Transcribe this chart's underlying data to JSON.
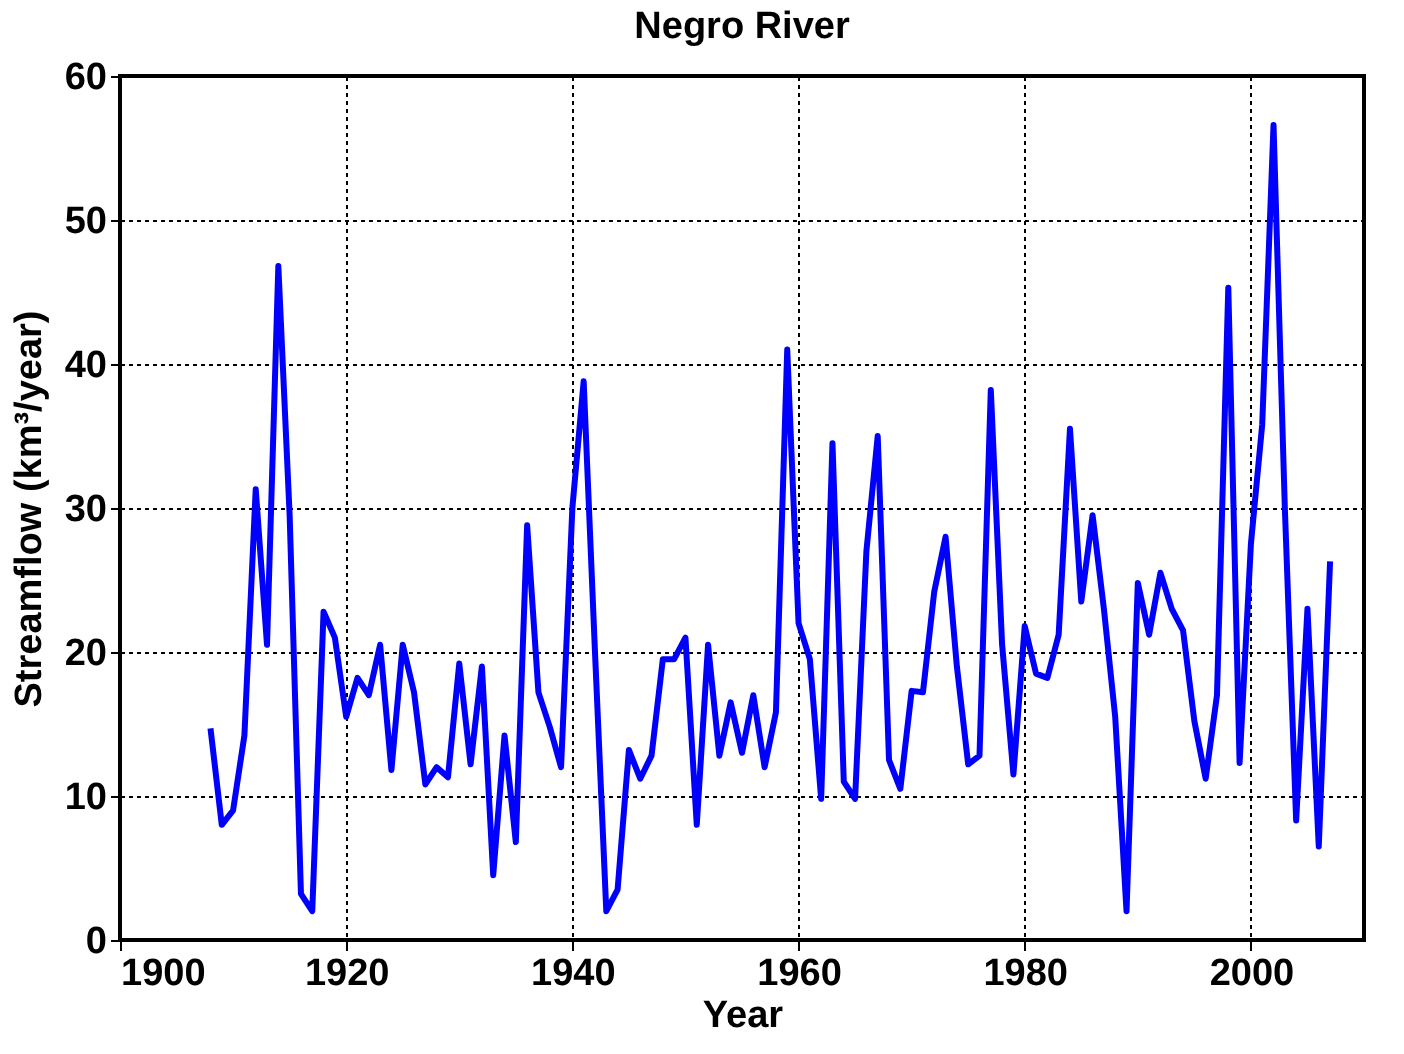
{
  "chart_data": {
    "type": "line",
    "title": "Negro River",
    "xlabel": "Year",
    "ylabel": "Streamflow (km³/year)",
    "x": [
      1908,
      1909,
      1910,
      1911,
      1912,
      1913,
      1914,
      1915,
      1916,
      1917,
      1918,
      1919,
      1920,
      1921,
      1922,
      1923,
      1924,
      1925,
      1926,
      1927,
      1928,
      1929,
      1930,
      1931,
      1932,
      1933,
      1934,
      1935,
      1936,
      1937,
      1938,
      1939,
      1940,
      1941,
      1942,
      1943,
      1944,
      1945,
      1946,
      1947,
      1948,
      1949,
      1950,
      1951,
      1952,
      1953,
      1954,
      1955,
      1956,
      1957,
      1958,
      1959,
      1960,
      1961,
      1962,
      1963,
      1964,
      1965,
      1966,
      1967,
      1968,
      1969,
      1970,
      1971,
      1972,
      1973,
      1974,
      1975,
      1976,
      1977,
      1978,
      1979,
      1980,
      1981,
      1982,
      1983,
      1984,
      1985,
      1986,
      1987,
      1988,
      1989,
      1990,
      1991,
      1992,
      1993,
      1994,
      1995,
      1996,
      1997,
      1998,
      1999,
      2000,
      2001,
      2002,
      2003,
      2004,
      2005,
      2006,
      2007
    ],
    "series": [
      {
        "color": "#0000ff",
        "values": [
          14.7,
          8.0,
          9.0,
          14.2,
          31.3,
          20.5,
          46.8,
          29.5,
          3.2,
          2.0,
          22.8,
          21.0,
          15.5,
          18.2,
          17.0,
          20.5,
          11.8,
          20.5,
          17.2,
          10.8,
          12.0,
          11.3,
          19.2,
          12.2,
          19.0,
          4.5,
          14.2,
          6.8,
          28.8,
          17.2,
          14.8,
          12.0,
          30.0,
          38.8,
          20.0,
          2.0,
          3.5,
          13.2,
          11.2,
          12.8,
          19.5,
          19.5,
          21.0,
          8.0,
          20.5,
          12.8,
          16.5,
          13.0,
          17.0,
          12.0,
          15.8,
          41.0,
          22.0,
          19.5,
          9.8,
          34.5,
          11.0,
          9.8,
          27.0,
          35.0,
          12.5,
          10.5,
          17.3,
          17.2,
          24.2,
          28.0,
          19.0,
          12.2,
          12.8,
          38.2,
          20.5,
          11.5,
          21.8,
          18.5,
          18.2,
          21.2,
          35.5,
          23.5,
          29.5,
          23.0,
          15.5,
          2.0,
          24.8,
          21.2,
          25.5,
          23.0,
          21.5,
          15.2,
          11.2,
          17.0,
          45.3,
          12.3,
          27.5,
          35.8,
          56.6,
          30.0,
          8.3,
          23.0,
          6.5,
          26.3
        ]
      }
    ],
    "xlim": [
      1900,
      2010
    ],
    "xticks": [
      1900,
      1920,
      1940,
      1960,
      1980,
      2000
    ],
    "ylim": [
      0,
      60
    ],
    "yticks": [
      0,
      10,
      20,
      30,
      40,
      50,
      60
    ],
    "grid": true,
    "marker": "none",
    "line_style": "solid"
  }
}
